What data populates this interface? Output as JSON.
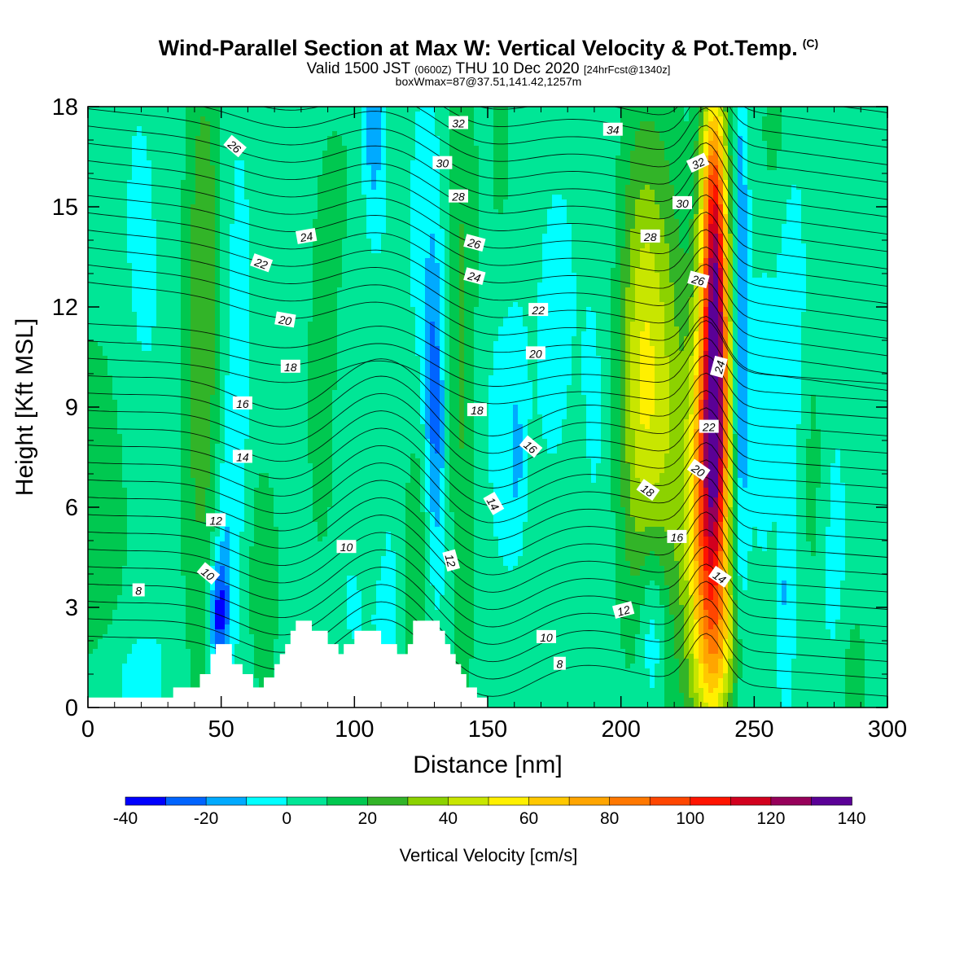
{
  "title": {
    "main": "Wind-Parallel Section at Max W: Vertical Velocity & Pot.Temp.",
    "copyright": "(C)",
    "valid_prefix": "Valid 1500 JST",
    "valid_z": "(0600Z)",
    "valid_date": "THU 10 Dec 2020",
    "forecast": "[24hrFcst@1340z]",
    "box": "boxWmax=87@37.51,141.42,1257m"
  },
  "chart_data": {
    "type": "heatmap",
    "xlabel": "Distance [nm]",
    "ylabel": "Height [Kft MSL]",
    "xlim": [
      0,
      300
    ],
    "ylim": [
      0,
      18
    ],
    "x_ticks": [
      0,
      50,
      100,
      150,
      200,
      250,
      300
    ],
    "y_ticks": [
      0,
      3,
      6,
      9,
      12,
      15,
      18
    ],
    "colorbar": {
      "label": "Vertical Velocity [cm/s]",
      "bounds": [
        -40,
        -30,
        -20,
        -10,
        0,
        10,
        20,
        30,
        40,
        50,
        60,
        70,
        80,
        90,
        100,
        110,
        120,
        130,
        140
      ],
      "tick_labels": [
        "-40",
        "-20",
        "0",
        "20",
        "40",
        "60",
        "80",
        "100",
        "120",
        "140"
      ],
      "colors": [
        "#0000ff",
        "#0064ff",
        "#00aaff",
        "#00ffff",
        "#00e696",
        "#00c850",
        "#32b428",
        "#8cd200",
        "#c8e600",
        "#fff000",
        "#ffc800",
        "#ffa500",
        "#ff7800",
        "#ff4600",
        "#ff1400",
        "#d2001e",
        "#96005a",
        "#5a0096"
      ]
    },
    "theta_contour_labels": [
      {
        "text": "8",
        "x": 19,
        "y": 3.5,
        "rot": 0
      },
      {
        "text": "10",
        "x": 45,
        "y": 4.0,
        "rot": 40
      },
      {
        "text": "12",
        "x": 48,
        "y": 5.6,
        "rot": 0
      },
      {
        "text": "14",
        "x": 58,
        "y": 7.5,
        "rot": 0
      },
      {
        "text": "16",
        "x": 58,
        "y": 9.1,
        "rot": 0
      },
      {
        "text": "18",
        "x": 76,
        "y": 10.2,
        "rot": 0
      },
      {
        "text": "20",
        "x": 74,
        "y": 11.6,
        "rot": 10
      },
      {
        "text": "22",
        "x": 65,
        "y": 13.3,
        "rot": 20
      },
      {
        "text": "24",
        "x": 82,
        "y": 14.1,
        "rot": -10
      },
      {
        "text": "26",
        "x": 55,
        "y": 16.8,
        "rot": 40
      },
      {
        "text": "10",
        "x": 97,
        "y": 4.8,
        "rot": 0
      },
      {
        "text": "12",
        "x": 136,
        "y": 4.4,
        "rot": 75
      },
      {
        "text": "14",
        "x": 152,
        "y": 6.1,
        "rot": 60
      },
      {
        "text": "16",
        "x": 166,
        "y": 7.8,
        "rot": 40
      },
      {
        "text": "18",
        "x": 146,
        "y": 8.9,
        "rot": 0
      },
      {
        "text": "20",
        "x": 168,
        "y": 10.6,
        "rot": 0
      },
      {
        "text": "22",
        "x": 169,
        "y": 11.9,
        "rot": 0
      },
      {
        "text": "24",
        "x": 145,
        "y": 12.9,
        "rot": 15
      },
      {
        "text": "26",
        "x": 145,
        "y": 13.9,
        "rot": 15
      },
      {
        "text": "28",
        "x": 139,
        "y": 15.3,
        "rot": 0
      },
      {
        "text": "30",
        "x": 133,
        "y": 16.3,
        "rot": 0
      },
      {
        "text": "32",
        "x": 139,
        "y": 17.5,
        "rot": 0
      },
      {
        "text": "34",
        "x": 197,
        "y": 17.3,
        "rot": 0
      },
      {
        "text": "8",
        "x": 177,
        "y": 1.3,
        "rot": 0
      },
      {
        "text": "10",
        "x": 172,
        "y": 2.1,
        "rot": 0
      },
      {
        "text": "12",
        "x": 201,
        "y": 2.9,
        "rot": -15
      },
      {
        "text": "14",
        "x": 237,
        "y": 3.9,
        "rot": 35
      },
      {
        "text": "16",
        "x": 221,
        "y": 5.1,
        "rot": 0
      },
      {
        "text": "18",
        "x": 210,
        "y": 6.5,
        "rot": 35
      },
      {
        "text": "20",
        "x": 229,
        "y": 7.1,
        "rot": 35
      },
      {
        "text": "22",
        "x": 233,
        "y": 8.4,
        "rot": 0
      },
      {
        "text": "24",
        "x": 237,
        "y": 10.2,
        "rot": -75
      },
      {
        "text": "26",
        "x": 229,
        "y": 12.8,
        "rot": 15
      },
      {
        "text": "28",
        "x": 211,
        "y": 14.1,
        "rot": 0
      },
      {
        "text": "30",
        "x": 223,
        "y": 15.1,
        "rot": 0
      },
      {
        "text": "32",
        "x": 229,
        "y": 16.3,
        "rot": -25
      }
    ],
    "terrain_kft": [
      [
        0,
        0.3
      ],
      [
        32,
        0.3
      ],
      [
        32,
        0.6
      ],
      [
        42,
        0.6
      ],
      [
        42,
        1.0
      ],
      [
        46,
        1.0
      ],
      [
        46,
        1.6
      ],
      [
        48,
        1.6
      ],
      [
        48,
        1.9
      ],
      [
        54,
        1.9
      ],
      [
        54,
        1.3
      ],
      [
        58,
        1.3
      ],
      [
        58,
        1.0
      ],
      [
        62,
        1.0
      ],
      [
        62,
        0.6
      ],
      [
        66,
        0.6
      ],
      [
        66,
        0.9
      ],
      [
        70,
        0.9
      ],
      [
        70,
        1.3
      ],
      [
        72,
        1.3
      ],
      [
        72,
        1.6
      ],
      [
        74,
        1.6
      ],
      [
        74,
        1.9
      ],
      [
        76,
        1.9
      ],
      [
        76,
        2.3
      ],
      [
        78,
        2.3
      ],
      [
        78,
        2.6
      ],
      [
        84,
        2.6
      ],
      [
        84,
        2.3
      ],
      [
        90,
        2.3
      ],
      [
        90,
        1.9
      ],
      [
        94,
        1.9
      ],
      [
        94,
        1.6
      ],
      [
        96,
        1.6
      ],
      [
        96,
        1.9
      ],
      [
        100,
        1.9
      ],
      [
        100,
        2.3
      ],
      [
        110,
        2.3
      ],
      [
        110,
        1.9
      ],
      [
        116,
        1.9
      ],
      [
        116,
        1.6
      ],
      [
        120,
        1.6
      ],
      [
        120,
        1.9
      ],
      [
        122,
        1.9
      ],
      [
        122,
        2.6
      ],
      [
        132,
        2.6
      ],
      [
        132,
        2.3
      ],
      [
        134,
        2.3
      ],
      [
        134,
        1.9
      ],
      [
        136,
        1.9
      ],
      [
        136,
        1.6
      ],
      [
        138,
        1.6
      ],
      [
        138,
        1.3
      ],
      [
        140,
        1.3
      ],
      [
        140,
        1.0
      ],
      [
        142,
        1.0
      ],
      [
        142,
        0.6
      ],
      [
        146,
        0.6
      ],
      [
        146,
        0.3
      ],
      [
        150,
        0.3
      ],
      [
        150,
        0.0
      ],
      [
        300,
        0.0
      ]
    ],
    "w_field_kft": {
      "background": 5,
      "features": [
        {
          "x": 3,
          "z": 6,
          "sx": 10,
          "sz": 3.5,
          "amp": 14
        },
        {
          "x": 18,
          "z": 13,
          "sx": 6,
          "sz": 6,
          "amp": -6
        },
        {
          "x": 30,
          "z": 8,
          "sx": 6,
          "sz": 10,
          "amp": -4
        },
        {
          "x": 42,
          "z": 9,
          "sx": 6,
          "sz": 6,
          "amp": 18
        },
        {
          "x": 44,
          "z": 15,
          "sx": 4,
          "sz": 4,
          "amp": 12
        },
        {
          "x": 49,
          "z": 2.8,
          "sx": 2.5,
          "sz": 1.2,
          "amp": -38
        },
        {
          "x": 52,
          "z": 5,
          "sx": 3,
          "sz": 3,
          "amp": -14
        },
        {
          "x": 56,
          "z": 11,
          "sx": 4,
          "sz": 5,
          "amp": -10
        },
        {
          "x": 66,
          "z": 4,
          "sx": 4,
          "sz": 2.5,
          "amp": 15
        },
        {
          "x": 16,
          "z": 1,
          "sx": 8,
          "sz": 1.2,
          "amp": -8
        },
        {
          "x": 72,
          "z": 13,
          "sx": 6,
          "sz": 6,
          "amp": -4
        },
        {
          "x": 98,
          "z": 15,
          "sx": 8,
          "sz": 3,
          "amp": 9
        },
        {
          "x": 100,
          "z": 11,
          "sx": 5,
          "sz": 5,
          "amp": -7
        },
        {
          "x": 88,
          "z": 9,
          "sx": 5,
          "sz": 4,
          "amp": 9
        },
        {
          "x": 112,
          "z": 8,
          "sx": 4,
          "sz": 6,
          "amp": -6
        },
        {
          "x": 105,
          "z": 3,
          "sx": 8,
          "sz": 1.5,
          "amp": -7
        },
        {
          "x": 106,
          "z": 6,
          "sx": 4,
          "sz": 3,
          "amp": 8
        },
        {
          "x": 123,
          "z": 4,
          "sx": 3,
          "sz": 3,
          "amp": 16
        },
        {
          "x": 130,
          "z": 9.3,
          "sx": 2.5,
          "sz": 3,
          "amp": -24
        },
        {
          "x": 127,
          "z": 14,
          "sx": 5,
          "sz": 4,
          "amp": -10
        },
        {
          "x": 107,
          "z": 17,
          "sx": 3,
          "sz": 2,
          "amp": -22
        },
        {
          "x": 133,
          "z": 6,
          "sx": 3,
          "sz": 3,
          "amp": -8
        },
        {
          "x": 140,
          "z": 11,
          "sx": 4,
          "sz": 8,
          "amp": 17
        },
        {
          "x": 155,
          "z": 16,
          "sx": 4,
          "sz": 3,
          "amp": 9
        },
        {
          "x": 157,
          "z": 9,
          "sx": 6,
          "sz": 4,
          "amp": -10
        },
        {
          "x": 161,
          "z": 7.5,
          "sx": 2,
          "sz": 1.5,
          "amp": -12
        },
        {
          "x": 185,
          "z": 14,
          "sx": 10,
          "sz": 4,
          "amp": -3
        },
        {
          "x": 180,
          "z": 5,
          "sx": 8,
          "sz": 3,
          "amp": 4
        },
        {
          "x": 175,
          "z": 10,
          "sx": 5,
          "sz": 4,
          "amp": -8
        },
        {
          "x": 190,
          "z": 8,
          "sx": 4,
          "sz": 3,
          "amp": -7
        },
        {
          "x": 212,
          "z": 2.5,
          "sx": 4,
          "sz": 2,
          "amp": -24
        },
        {
          "x": 208,
          "z": 10,
          "sx": 6,
          "sz": 5,
          "amp": 44
        },
        {
          "x": 218,
          "z": 8.5,
          "sx": 5,
          "sz": 6,
          "amp": 22
        },
        {
          "x": 232,
          "z": 5.5,
          "sx": 5.5,
          "sz": 4.5,
          "amp": 72
        },
        {
          "x": 235,
          "z": 9.5,
          "sx": 4,
          "sz": 4,
          "amp": 62
        },
        {
          "x": 236,
          "z": 12,
          "sx": 3,
          "sz": 4.5,
          "amp": 52
        },
        {
          "x": 234,
          "z": 15.5,
          "sx": 3.5,
          "sz": 2.5,
          "amp": 38
        },
        {
          "x": 238,
          "z": 1.8,
          "sx": 5,
          "sz": 1.5,
          "amp": 25
        },
        {
          "x": 245,
          "z": 11,
          "sx": 2,
          "sz": 6,
          "amp": -28
        },
        {
          "x": 253,
          "z": 9,
          "sx": 4,
          "sz": 4,
          "amp": -9
        },
        {
          "x": 262,
          "z": 3,
          "sx": 2,
          "sz": 3,
          "amp": -15
        },
        {
          "x": 272,
          "z": 7,
          "sx": 3,
          "sz": 3,
          "amp": 9
        },
        {
          "x": 280,
          "z": 4,
          "sx": 4,
          "sz": 3,
          "amp": -8
        },
        {
          "x": 287,
          "z": 1,
          "sx": 4,
          "sz": 1.5,
          "amp": 10
        },
        {
          "x": 283,
          "z": 13,
          "sx": 4,
          "sz": 4,
          "amp": -4
        },
        {
          "x": 264,
          "z": 12,
          "sx": 4,
          "sz": 4,
          "amp": -12
        },
        {
          "x": 258,
          "z": 17,
          "sx": 5,
          "sz": 2,
          "amp": 9
        }
      ]
    }
  }
}
